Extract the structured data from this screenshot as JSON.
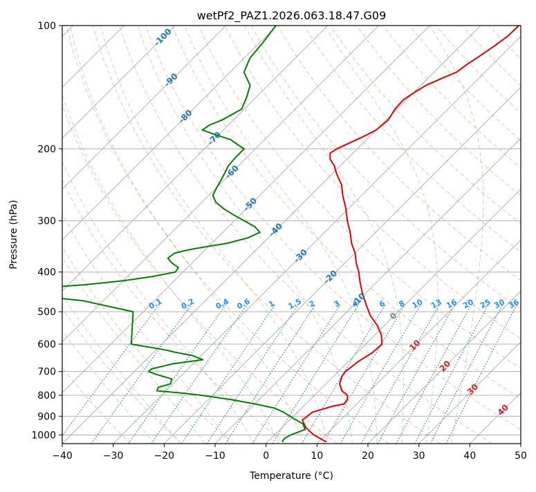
{
  "chart_data": {
    "type": "line",
    "chart_kind": "skew-T log-P diagram",
    "title": "wetPf2_PAZ1.2026.063.18.47.G09",
    "xlabel": "Temperature (°C)",
    "ylabel": "Pressure (hPa)",
    "xlim": [
      -40,
      50
    ],
    "ylim": [
      1050,
      100
    ],
    "y_scale": "log",
    "grid": true,
    "x_ticks": [
      "−40",
      "−30",
      "−20",
      "−10",
      "0",
      "10",
      "20",
      "30",
      "40",
      "50"
    ],
    "y_ticks": [
      "100",
      "200",
      "300",
      "400",
      "500",
      "600",
      "700",
      "800",
      "900",
      "1000"
    ],
    "series": [
      {
        "color": "#e00000",
        "pressure": [
          1040,
          1000,
          960,
          920,
          880,
          850,
          840,
          820,
          800,
          780,
          750,
          720,
          700,
          680,
          660,
          630,
          600,
          570,
          540,
          510,
          480,
          450,
          420,
          400,
          380,
          360,
          340,
          320,
          300,
          280,
          260,
          245,
          230,
          220,
          212,
          205,
          200,
          195,
          188,
          180,
          170,
          160,
          152,
          145,
          140,
          135,
          130,
          124,
          118,
          112,
          106,
          100
        ],
        "temperature": [
          11.5,
          7.7,
          4.7,
          2.5,
          2.9,
          5.8,
          7.5,
          7.3,
          6.5,
          4.5,
          2.7,
          1.7,
          1.4,
          1.7,
          2.0,
          3.0,
          3.2,
          1.3,
          -1.4,
          -4.8,
          -7.7,
          -10.7,
          -13.6,
          -15.5,
          -17.8,
          -19.9,
          -22.6,
          -25.0,
          -27.8,
          -30.5,
          -33.7,
          -36.0,
          -39.2,
          -41.2,
          -43.3,
          -44.5,
          -44.0,
          -43.0,
          -41.5,
          -40.0,
          -39.6,
          -40.4,
          -40.6,
          -39.8,
          -39.0,
          -37.4,
          -35.6,
          -35.0,
          -34.1,
          -33.3,
          -32.6,
          -32.5
        ]
      },
      {
        "color": "#008000",
        "pressure": [
          1040,
          1020,
          1000,
          970,
          940,
          910,
          880,
          860,
          840,
          820,
          800,
          790,
          780,
          765,
          750,
          730,
          710,
          700,
          690,
          670,
          655,
          640,
          628,
          620,
          600,
          500,
          470,
          460,
          455,
          450,
          440,
          430,
          420,
          410,
          400,
          390,
          380,
          370,
          360,
          355,
          350,
          340,
          330,
          320,
          310,
          300,
          290,
          280,
          270,
          260,
          250,
          240,
          230,
          220,
          210,
          200,
          195,
          190,
          185,
          180,
          175,
          170,
          160,
          150,
          140,
          130,
          120,
          110,
          100
        ],
        "dewpoint": [
          2.8,
          2.6,
          3.1,
          4.9,
          3.4,
          0.3,
          -2.7,
          -5.3,
          -9.9,
          -15.4,
          -22.2,
          -26.5,
          -31.8,
          -32.2,
          -30.5,
          -31.2,
          -35.4,
          -37.2,
          -37.2,
          -34.0,
          -28.9,
          -31.7,
          -35.8,
          -38.1,
          -46.0,
          -52.0,
          -64.0,
          -72.0,
          -85.0,
          -90.0,
          -78.0,
          -67.0,
          -60.0,
          -55.0,
          -51.5,
          -51.8,
          -54.0,
          -55.7,
          -55.4,
          -54.0,
          -52.0,
          -46.9,
          -44.0,
          -42.7,
          -44.8,
          -48.0,
          -51.3,
          -54.5,
          -57.3,
          -59.2,
          -59.9,
          -60.5,
          -61.2,
          -62.0,
          -62.2,
          -62.2,
          -64.5,
          -66.6,
          -70.4,
          -74.1,
          -73.7,
          -72.2,
          -70.5,
          -71.8,
          -73.5,
          -77.3,
          -78.9,
          -79.4,
          -80.2
        ]
      }
    ],
    "background_lines": {
      "isotherm_spacing_C": 10,
      "dry_adiabats_C": [
        -30,
        -20,
        -10,
        0,
        10,
        20,
        30,
        40,
        50,
        60,
        70,
        80,
        90,
        100,
        110,
        120,
        130,
        140,
        150,
        160,
        170,
        180,
        190,
        200,
        210,
        220,
        230
      ],
      "moist_adiabats_C": [
        -25,
        -20,
        -15,
        -10,
        -5,
        0,
        5,
        10,
        15,
        20,
        25,
        30,
        35
      ],
      "mixing_ratio_labels": [
        "0.1",
        "0.2",
        "0.4",
        "0.6",
        "1",
        "1.5",
        "2",
        "3",
        "4",
        "6",
        "8",
        "10",
        "13",
        "16",
        "20",
        "25",
        "30",
        "36"
      ],
      "mixing_ratio_values": [
        0.1,
        0.2,
        0.4,
        0.6,
        1,
        1.5,
        2,
        3,
        4,
        6,
        8,
        10,
        13,
        16,
        20,
        25,
        30,
        36
      ]
    },
    "skewed_isotherm_labels": {
      "labels": [
        "-100",
        "-90",
        "-80",
        "-70",
        "-60",
        "-50",
        "-40",
        "-30",
        "-20",
        "-10",
        "0",
        "10",
        "20",
        "30",
        "40"
      ],
      "temperature": [
        -100,
        -90,
        -80,
        -70,
        -60,
        -50,
        -40,
        -30,
        -20,
        -10,
        0,
        10,
        20,
        30,
        40
      ],
      "pressure": [
        107,
        136,
        167,
        189,
        228,
        274,
        316,
        366,
        412,
        468,
        513,
        605,
        680,
        775,
        870
      ],
      "colors": [
        "#1f77b4",
        "#1f77b4",
        "#1f77b4",
        "#1f77b4",
        "#1f77b4",
        "#1f77b4",
        "#1f77b4",
        "#1f77b4",
        "#1f77b4",
        "#1f77b4",
        "#808080",
        "#d62728",
        "#d62728",
        "#d62728",
        "#d62728"
      ]
    }
  }
}
